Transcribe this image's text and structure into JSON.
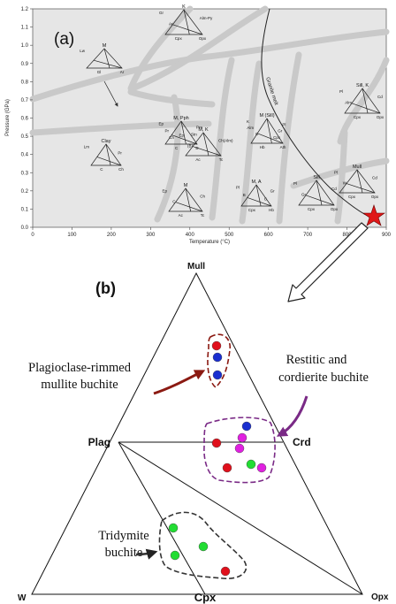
{
  "panel_a": {
    "label": "(a)",
    "x_axis_label": "Temperature (°C)",
    "y_axis_label": "Pressure (GPa)",
    "x_ticks": [
      "0",
      "100",
      "200",
      "300",
      "400",
      "500",
      "600",
      "700",
      "800",
      "900"
    ],
    "y_ticks": [
      "0.0",
      "0.1",
      "0.2",
      "0.3",
      "0.4",
      "0.5",
      "0.6",
      "0.7",
      "0.8",
      "0.9",
      "1.0",
      "1.1",
      "1.2"
    ],
    "granite_melt_label": "Granite melt",
    "facies": [
      {
        "title": "M",
        "labels": [
          "Lw",
          "Gl",
          "Ar"
        ]
      },
      {
        "title": "K",
        "labels": [
          "Gr",
          "Alm-Py",
          "Ar",
          "Cpx",
          "Opx"
        ]
      },
      {
        "title": "M, Pph",
        "labels": [
          "Ep",
          "Prn",
          "Pr",
          "Stn",
          "Ch",
          "C",
          "D"
        ]
      },
      {
        "title": "Clay",
        "labels": [
          "Lm",
          "Pr",
          "C",
          "Ch"
        ]
      },
      {
        "title": "M, K",
        "labels": [
          "Ep",
          "Ch(Alm)",
          "(B)",
          "Ac",
          "Tc"
        ]
      },
      {
        "title": "M",
        "labels": [
          "Ep",
          "Ch",
          "C",
          "Ac",
          "Tc"
        ]
      },
      {
        "title": "M (Sill)",
        "labels": [
          "K",
          "Pl",
          "Alm",
          "Gr",
          "C",
          "Cpx",
          "Hb",
          "Ath"
        ]
      },
      {
        "title": "M, A",
        "labels": [
          "Pl",
          "Gr",
          "B",
          "C",
          "Cpx",
          "Hb"
        ]
      },
      {
        "title": "Sill",
        "labels": [
          "Pl",
          "Cd",
          "Gr",
          "Cpx",
          "Opx"
        ]
      },
      {
        "title": "Mull",
        "labels": [
          "Pl",
          "Cd",
          "W",
          "Cpx",
          "Opx"
        ]
      },
      {
        "title": "Sill, K",
        "labels": [
          "Pl",
          "Cd",
          "Alm",
          "Cpx",
          "Opx"
        ]
      }
    ]
  },
  "panel_b": {
    "label": "(b)",
    "apex_labels": {
      "top": "Mull",
      "left": "W",
      "right": "Opx",
      "bottom_mid": "Cpx",
      "mid_left": "Plag",
      "mid_right": "Crd"
    },
    "annotations": {
      "plagioclase": [
        "Plagioclase-rimmed",
        "mullite buchite"
      ],
      "restitic": [
        "Restitic and",
        "cordierite buchite"
      ],
      "tridymite": [
        "Tridymite",
        "buchite"
      ]
    },
    "point_colors": {
      "red": "#e0101c",
      "blue": "#1a2fd0",
      "magenta": "#e020e0",
      "green": "#22dd33"
    },
    "groups": [
      {
        "name": "plagioclase-rimmed mullite buchite",
        "points": [
          {
            "color": "red"
          },
          {
            "color": "blue"
          },
          {
            "color": "blue"
          }
        ]
      },
      {
        "name": "restitic and cordierite buchite",
        "points": [
          {
            "color": "blue"
          },
          {
            "color": "red"
          },
          {
            "color": "magenta"
          },
          {
            "color": "magenta"
          },
          {
            "color": "red"
          },
          {
            "color": "green"
          },
          {
            "color": "magenta"
          }
        ]
      },
      {
        "name": "tridymite buchite",
        "points": [
          {
            "color": "green"
          },
          {
            "color": "green"
          },
          {
            "color": "green"
          },
          {
            "color": "red"
          }
        ]
      }
    ]
  }
}
